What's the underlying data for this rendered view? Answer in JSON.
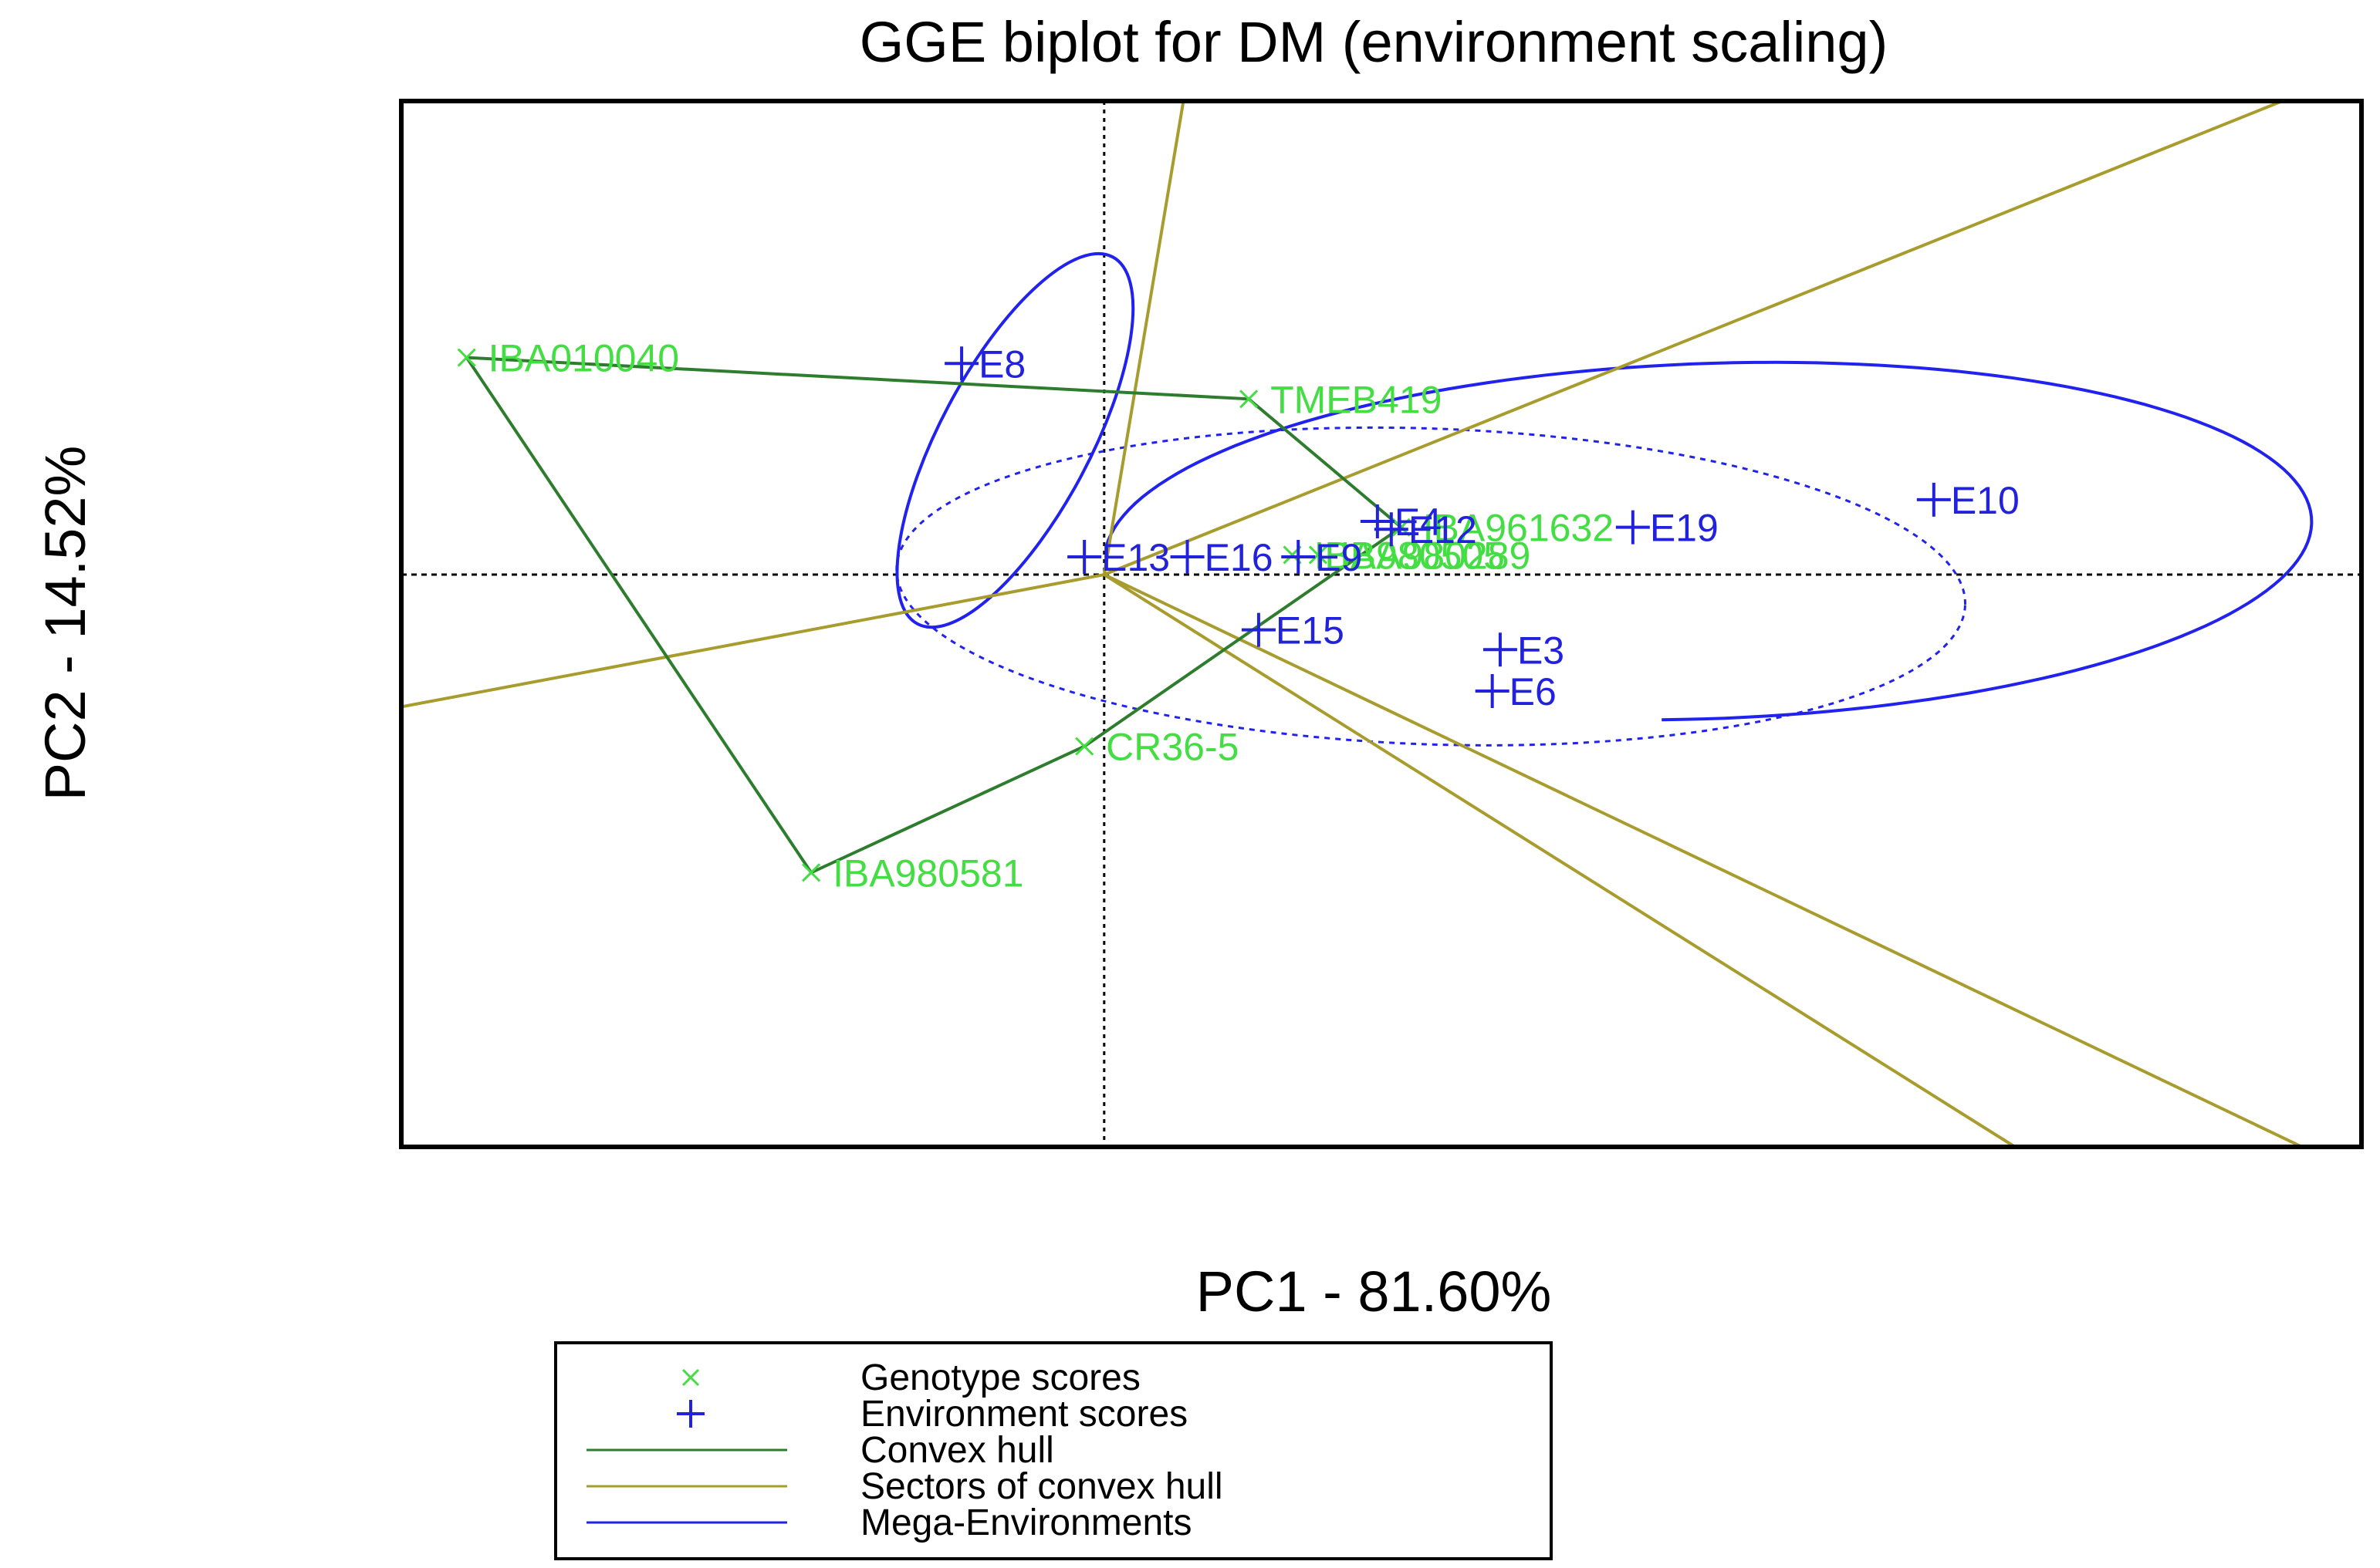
{
  "chart_data": {
    "type": "scatter",
    "title": "GGE biplot for DM (environment scaling)",
    "xlabel": "PC1 - 81.60%",
    "ylabel": "PC2 - 14.52%",
    "xlim": [
      -3.55,
      6.35
    ],
    "ylim": [
      -2.9,
      2.4
    ],
    "grid": false,
    "legend_position": "bottom-center",
    "colors": {
      "genotype": "#44dd44",
      "environment": "#2222dd",
      "hull": "#2e7d2e",
      "sector": "#a89c2e",
      "mega": "#2222ee",
      "axis": "#000000"
    },
    "genotypes": [
      {
        "label": "IBA010040",
        "x": -3.22,
        "y": 1.1
      },
      {
        "label": "TMEB419",
        "x": 0.73,
        "y": 0.89
      },
      {
        "label": "IBA961632",
        "x": 1.5,
        "y": 0.24
      },
      {
        "label": "IBA980505",
        "x": 0.95,
        "y": 0.1
      },
      {
        "label": "IBA980289",
        "x": 1.08,
        "y": 0.1
      },
      {
        "label": "CR36-5",
        "x": -0.1,
        "y": -0.87
      },
      {
        "label": "IBA980581",
        "x": -1.48,
        "y": -1.51
      }
    ],
    "environments": [
      {
        "label": "E8",
        "x": -0.72,
        "y": 1.07
      },
      {
        "label": "E10",
        "x": 4.19,
        "y": 0.38
      },
      {
        "label": "E4",
        "x": 1.38,
        "y": 0.27
      },
      {
        "label": "E12",
        "x": 1.45,
        "y": 0.23
      },
      {
        "label": "E19",
        "x": 2.67,
        "y": 0.24
      },
      {
        "label": "E13",
        "x": -0.1,
        "y": 0.09
      },
      {
        "label": "E16",
        "x": 0.42,
        "y": 0.09
      },
      {
        "label": "E9",
        "x": 0.98,
        "y": 0.09
      },
      {
        "label": "E15",
        "x": 0.78,
        "y": -0.28
      },
      {
        "label": "E3",
        "x": 2.0,
        "y": -0.38
      },
      {
        "label": "E6",
        "x": 1.96,
        "y": -0.59
      }
    ],
    "convex_hull": [
      "IBA010040",
      "TMEB419",
      "IBA961632",
      "CR36-5",
      "IBA980581"
    ],
    "sector_rays": [
      {
        "end": [
          0.4,
          2.4
        ]
      },
      {
        "end": [
          5.95,
          2.4
        ]
      },
      {
        "end": [
          -3.55,
          -0.67
        ]
      },
      {
        "end": [
          4.6,
          -2.9
        ]
      },
      {
        "end": [
          6.05,
          -2.9
        ]
      }
    ],
    "mega_environments": [
      {
        "cx": -0.45,
        "cy": 0.68,
        "rx": 1.05,
        "ry": 0.38,
        "angle": -62,
        "style": "solid"
      },
      {
        "cx": 3.05,
        "cy": 0.17,
        "rx": 3.05,
        "ry": 0.9,
        "angle": -2,
        "style": "solid",
        "arc": [
          185,
          95
        ]
      },
      {
        "cx": 1.65,
        "cy": -0.06,
        "rx": 2.7,
        "ry": 0.8,
        "angle": 2,
        "style": "dotted"
      }
    ],
    "legend": [
      {
        "label": "Genotype scores",
        "symbol": "×",
        "kind": "genotype"
      },
      {
        "label": "Environment scores",
        "symbol": "+",
        "kind": "environment"
      },
      {
        "label": "Convex hull",
        "kind": "hull"
      },
      {
        "label": "Sectors of convex hull",
        "kind": "sector"
      },
      {
        "label": "Mega-Environments",
        "kind": "mega"
      }
    ]
  }
}
